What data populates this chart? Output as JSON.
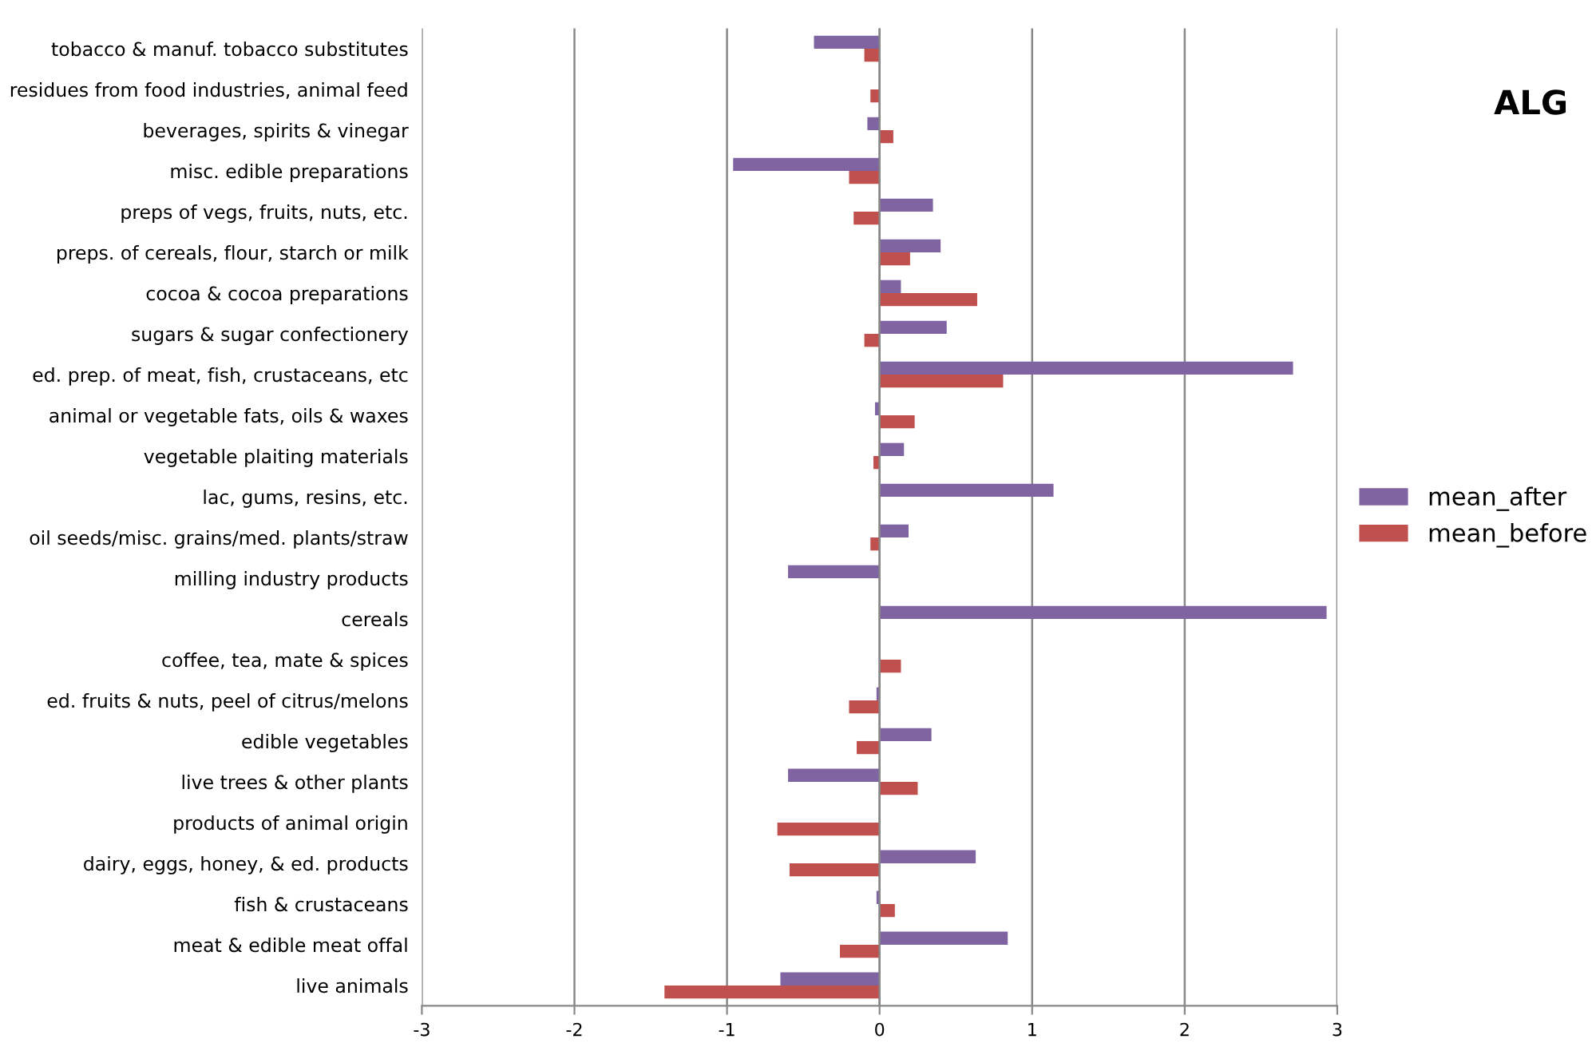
{
  "chart_data": {
    "type": "bar",
    "orientation": "horizontal",
    "title": "ALG",
    "categories": [
      "tobacco & manuf. tobacco substitutes",
      "residues from food industries, animal feed",
      "beverages, spirits & vinegar",
      "misc. edible preparations",
      "preps of vegs, fruits, nuts, etc.",
      "preps. of cereals, flour, starch or milk",
      "cocoa & cocoa preparations",
      "sugars & sugar confectionery",
      "ed. prep. of meat, fish, crustaceans, etc",
      "animal or vegetable fats, oils & waxes",
      "vegetable plaiting materials",
      "lac, gums, resins, etc.",
      "oil seeds/misc. grains/med. plants/straw",
      "milling industry products",
      "cereals",
      "coffee, tea, mate & spices",
      "ed. fruits & nuts, peel of citrus/melons",
      "edible vegetables",
      "live trees & other plants",
      "products of animal origin",
      "dairy, eggs, honey, & ed. products",
      "fish & crustaceans",
      "meat & edible meat offal",
      "live animals"
    ],
    "series": [
      {
        "name": "mean_after",
        "color": "#8064a2",
        "values": [
          -0.43,
          null,
          -0.08,
          -0.96,
          0.35,
          0.4,
          0.14,
          0.44,
          2.71,
          -0.03,
          0.16,
          1.14,
          0.19,
          -0.6,
          2.93,
          null,
          -0.02,
          0.34,
          -0.6,
          null,
          0.63,
          -0.02,
          0.84,
          -0.65
        ]
      },
      {
        "name": "mean_before",
        "color": "#c0504d",
        "values": [
          -0.1,
          -0.06,
          0.09,
          -0.2,
          -0.17,
          0.2,
          0.64,
          -0.1,
          0.81,
          0.23,
          -0.04,
          null,
          -0.06,
          null,
          null,
          0.14,
          -0.2,
          -0.15,
          0.25,
          -0.67,
          -0.59,
          0.1,
          -0.26,
          -1.41
        ]
      }
    ],
    "xlim": [
      -3,
      3
    ],
    "xticks": [
      -3,
      -2,
      -1,
      0,
      1,
      2,
      3
    ],
    "grid": "x",
    "legend": "right"
  }
}
